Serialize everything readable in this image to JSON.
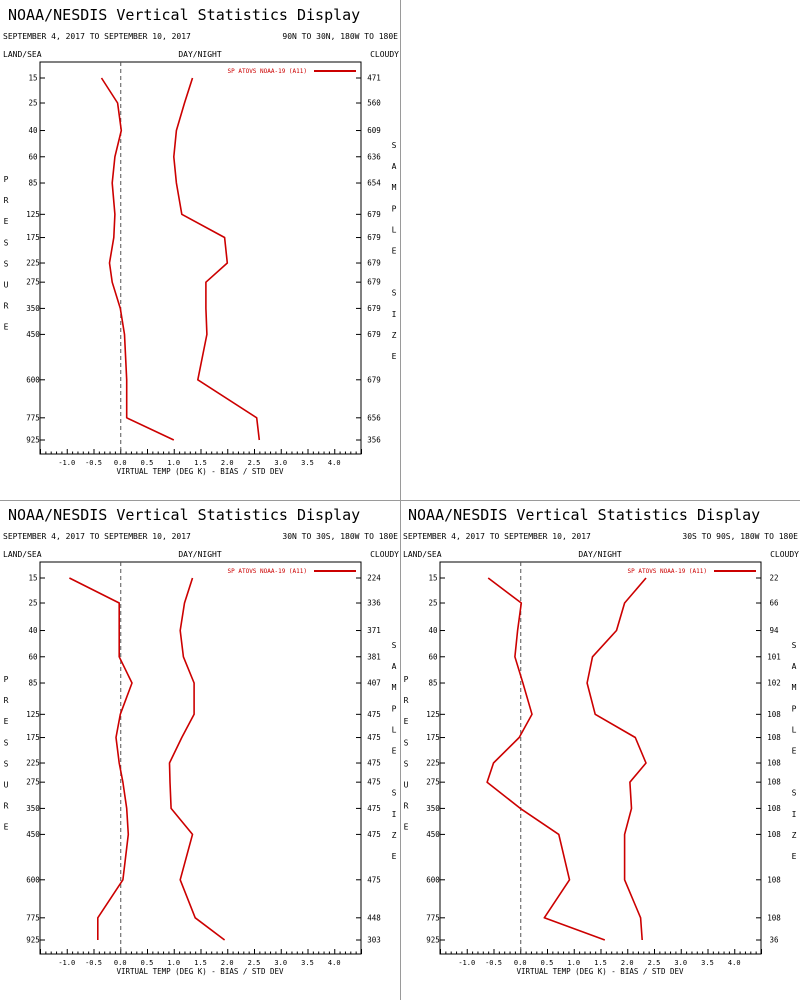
{
  "chart_data": [
    {
      "type": "line",
      "title": "NOAA/NESDIS Vertical Statistics Display",
      "date_range": "SEPTEMBER 4, 2017 TO SEPTEMBER 10, 2017",
      "region": "90N TO 30N, 180W TO 180E",
      "header_left": "LAND/SEA",
      "header_center": "DAY/NIGHT",
      "header_right": "CLOUDY",
      "ylabel": "PRESSURE",
      "y2label": "SAMPLE SIZE",
      "xlabel": "VIRTUAL TEMP (DEG K) - BIAS / STD DEV",
      "xlim": [
        -1.5,
        4.5
      ],
      "x_ticks": [
        "-1.0",
        "-0.5",
        "0.0",
        "0.5",
        "1.0",
        "1.5",
        "2.0",
        "2.5",
        "3.0",
        "3.5",
        "4.0"
      ],
      "legend": "SP ATOVS NOAA-19 (A11)",
      "legend_position": "top-right",
      "color": "#cc0000",
      "pressure_levels": [
        "15",
        "25",
        "40",
        "60",
        "85",
        "125",
        "175",
        "225",
        "275",
        "350",
        "450",
        "600",
        "775",
        "925"
      ],
      "sample_sizes": [
        "471",
        "560",
        "609",
        "636",
        "654",
        "679",
        "679",
        "679",
        "679",
        "679",
        "679",
        "679",
        "656",
        "356"
      ],
      "series": [
        {
          "values": [
            -0.35,
            -0.05,
            0.02,
            -0.1,
            -0.15,
            -0.1,
            -0.12,
            -0.2,
            -0.15,
            0.0,
            0.08,
            0.12,
            0.12,
            1.0
          ]
        },
        {
          "values": [
            1.35,
            1.2,
            1.05,
            1.0,
            1.05,
            1.15,
            1.95,
            2.0,
            1.6,
            1.6,
            1.62,
            1.45,
            2.55,
            2.6
          ]
        }
      ]
    },
    {
      "type": "line",
      "title": "NOAA/NESDIS Vertical Statistics Display",
      "date_range": "SEPTEMBER 4, 2017 TO SEPTEMBER 10, 2017",
      "region": "30N TO 30S, 180W TO 180E",
      "header_left": "LAND/SEA",
      "header_center": "DAY/NIGHT",
      "header_right": "CLOUDY",
      "ylabel": "PRESSURE",
      "y2label": "SAMPLE SIZE",
      "xlabel": "VIRTUAL TEMP (DEG K) - BIAS / STD DEV",
      "xlim": [
        -1.5,
        4.5
      ],
      "x_ticks": [
        "-1.0",
        "-0.5",
        "0.0",
        "0.5",
        "1.0",
        "1.5",
        "2.0",
        "2.5",
        "3.0",
        "3.5",
        "4.0"
      ],
      "legend": "SP ATOVS NOAA-19 (A11)",
      "legend_position": "top-right",
      "color": "#cc0000",
      "pressure_levels": [
        "15",
        "25",
        "40",
        "60",
        "85",
        "125",
        "175",
        "225",
        "275",
        "350",
        "450",
        "600",
        "775",
        "925"
      ],
      "sample_sizes": [
        "224",
        "336",
        "371",
        "381",
        "407",
        "475",
        "475",
        "475",
        "475",
        "475",
        "475",
        "475",
        "448",
        "303"
      ],
      "series": [
        {
          "values": [
            -0.95,
            -0.02,
            -0.02,
            -0.02,
            0.22,
            0.0,
            -0.08,
            -0.02,
            0.05,
            0.12,
            0.15,
            0.05,
            -0.42,
            -0.42
          ]
        },
        {
          "values": [
            1.35,
            1.2,
            1.12,
            1.18,
            1.38,
            1.38,
            1.15,
            0.92,
            0.93,
            0.95,
            1.35,
            1.12,
            1.4,
            1.95
          ]
        }
      ]
    },
    {
      "type": "line",
      "title": "NOAA/NESDIS Vertical Statistics Display",
      "date_range": "SEPTEMBER 4, 2017 TO SEPTEMBER 10, 2017",
      "region": "30S TO 90S, 180W TO 180E",
      "header_left": "LAND/SEA",
      "header_center": "DAY/NIGHT",
      "header_right": "CLOUDY",
      "ylabel": "PRESSURE",
      "y2label": "SAMPLE SIZE",
      "xlabel": "VIRTUAL TEMP (DEG K) - BIAS / STD DEV",
      "xlim": [
        -1.5,
        4.5
      ],
      "x_ticks": [
        "-1.0",
        "-0.5",
        "0.0",
        "0.5",
        "1.0",
        "1.5",
        "2.0",
        "2.5",
        "3.0",
        "3.5",
        "4.0"
      ],
      "legend": "SP ATOVS NOAA-19 (A11)",
      "legend_position": "top-right",
      "color": "#cc0000",
      "pressure_levels": [
        "15",
        "25",
        "40",
        "60",
        "85",
        "125",
        "175",
        "225",
        "275",
        "350",
        "450",
        "600",
        "775",
        "925"
      ],
      "sample_sizes": [
        "22",
        "66",
        "94",
        "101",
        "102",
        "108",
        "108",
        "108",
        "108",
        "108",
        "108",
        "108",
        "108",
        "36"
      ],
      "series": [
        {
          "values": [
            -0.6,
            0.02,
            -0.05,
            -0.1,
            0.05,
            0.22,
            -0.02,
            -0.5,
            -0.62,
            0.0,
            0.72,
            0.92,
            0.45,
            1.58
          ]
        },
        {
          "values": [
            2.35,
            1.95,
            1.8,
            1.35,
            1.25,
            1.4,
            2.15,
            2.35,
            2.05,
            2.08,
            1.95,
            1.95,
            2.25,
            2.28
          ]
        }
      ]
    }
  ]
}
